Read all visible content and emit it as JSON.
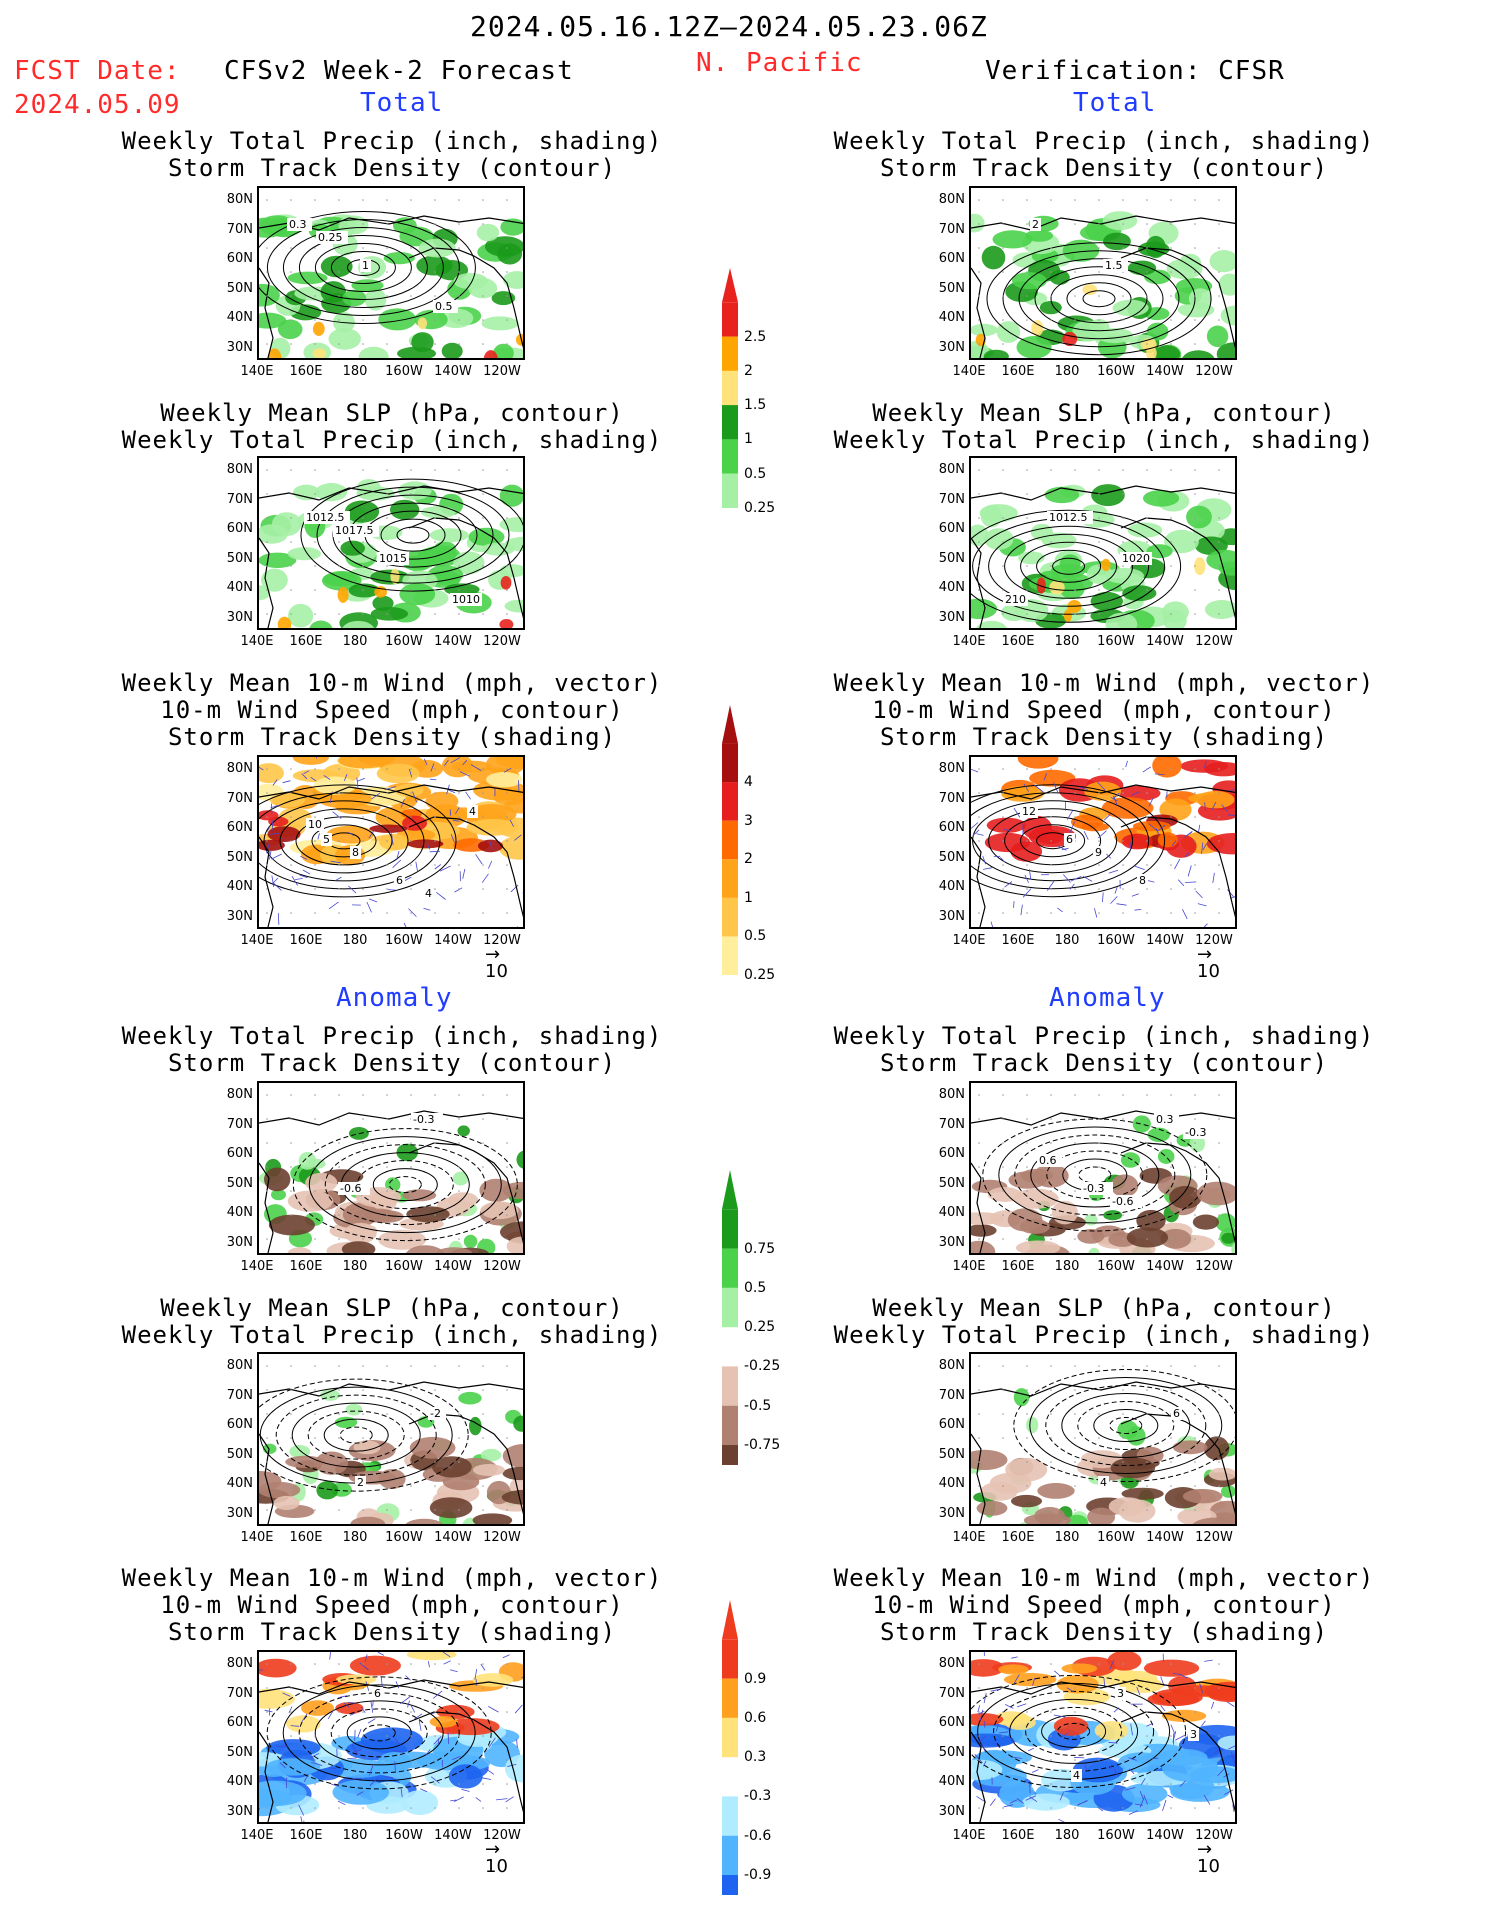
{
  "header": {
    "period": "2024.05.16.12Z–2024.05.23.06Z",
    "fcst_label": "FCST Date:",
    "fcst_date": "2024.05.09",
    "model_title": "CFSv2 Week-2 Forecast",
    "region": "N. Pacific",
    "verification": "Verification: CFSR"
  },
  "sections": {
    "total": "Total",
    "anomaly": "Anomaly"
  },
  "titles": {
    "precip_storm": [
      "Weekly Total Precip (inch, shading)",
      "Storm Track Density (contour)"
    ],
    "slp_precip": [
      "Weekly Mean SLP (hPa, contour)",
      "Weekly Total Precip (inch, shading)"
    ],
    "wind_storm": [
      "Weekly Mean 10-m Wind (mph, vector)",
      "10-m Wind Speed (mph, contour)",
      "Storm Track Density (shading)"
    ]
  },
  "axes": {
    "lat_labels": [
      "80N",
      "70N",
      "60N",
      "50N",
      "40N",
      "30N"
    ],
    "lon_labels": [
      "140E",
      "160E",
      "180",
      "160W",
      "140W",
      "120W"
    ]
  },
  "vector_ref": "10",
  "colorbars": {
    "precip_total": {
      "labels": [
        "2.5",
        "2",
        "1.5",
        "1",
        "0.5",
        "0.25"
      ],
      "colors": [
        "#e8231e",
        "#ffa500",
        "#ffe27a",
        "#1b9a1b",
        "#4ad24a",
        "#a6f0a6"
      ]
    },
    "storm_total": {
      "labels": [
        "4",
        "3",
        "2",
        "1",
        "0.5",
        "0.25"
      ],
      "colors": [
        "#a50f0f",
        "#e61e1e",
        "#ff6a00",
        "#ffa31a",
        "#ffc64a",
        "#ffee9c"
      ]
    },
    "precip_anom": {
      "labels": [
        "0.75",
        "0.5",
        "0.25",
        "-0.25",
        "-0.5",
        "-0.75"
      ],
      "colors": [
        "#1b9a1b",
        "#4ad24a",
        "#a6f0a6",
        "#e6c2b2",
        "#b08070",
        "#6b4030"
      ]
    },
    "storm_anom": {
      "labels": [
        "0.9",
        "0.6",
        "0.3",
        "-0.3",
        "-0.6",
        "-0.9"
      ],
      "colors": [
        "#f03c1e",
        "#ffa01e",
        "#ffe27a",
        "#b0ecff",
        "#50b4ff",
        "#1e64f0"
      ]
    }
  },
  "contour_labels": {
    "r1l": [
      "0.3",
      "1",
      "0.5",
      "0.25"
    ],
    "r1r": [
      "2",
      "1.5"
    ],
    "r2l": [
      "1012.5",
      "1015",
      "1010",
      "1017.5"
    ],
    "r2r": [
      "1012.5",
      "1020",
      "210"
    ],
    "r3l": [
      "5",
      "6",
      "4",
      "8",
      "4",
      "10"
    ],
    "r3r": [
      "6",
      "8",
      "12",
      "9"
    ],
    "r4l": [
      "-0.6",
      "-0.3"
    ],
    "r4r": [
      "-0.3",
      "0.3",
      "0.6",
      "-0.6",
      "-0.3"
    ],
    "r5l": [
      "2",
      "-2"
    ],
    "r5r": [
      "4",
      "6"
    ],
    "r6l": [
      "6"
    ],
    "r6r": [
      "3",
      "3",
      "4"
    ]
  }
}
